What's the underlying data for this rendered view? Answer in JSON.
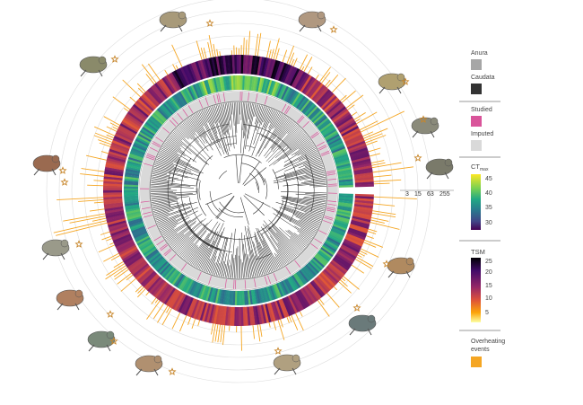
{
  "scale_labels": [
    "3",
    "15",
    "63",
    "255"
  ],
  "legend": {
    "order_title": "",
    "order_items": [
      {
        "label": "Anura",
        "color": "#a6a6a6"
      },
      {
        "label": "Caudata",
        "color": "#333333"
      }
    ],
    "data_items": [
      {
        "label": "Studied",
        "color": "#d9549a"
      },
      {
        "label": "Imputed",
        "color": "#d9d9d9"
      }
    ],
    "ct_title": "CT",
    "ct_subscript": "max",
    "ct_ticks": [
      "45",
      "40",
      "35",
      "30"
    ],
    "ct_colors": [
      "#fde725",
      "#7ad151",
      "#22a884",
      "#2a788e",
      "#414487",
      "#440154"
    ],
    "tsm_title": "TSM",
    "tsm_ticks": [
      "25",
      "20",
      "15",
      "10",
      "5"
    ],
    "tsm_colors": [
      "#000004",
      "#420a68",
      "#932667",
      "#dd513a",
      "#fca50a",
      "#fcffa4"
    ],
    "overheating_title_line1": "Overheating",
    "overheating_title_line2": "events",
    "overheating_color": "#f5a623"
  },
  "colors": {
    "tsm_ring_main": "#f07a2e",
    "ct_ring_main": "#22a884",
    "overheating_bars": "#f5a623",
    "studied_ticks": "#d9549a",
    "imputed_ring": "#d9d9d9",
    "tree_anura": "#1a1a1a",
    "star": "#c8862a",
    "grid": "#dddddd"
  },
  "icons": [
    "toad-icon",
    "newt-icon",
    "salamander-icon",
    "salamander-icon",
    "newt-icon",
    "frog-icon",
    "tree-frog-icon",
    "toad-icon",
    "frog-icon",
    "frog-icon",
    "toad-icon",
    "frog-icon",
    "toad-icon",
    "frog-icon",
    "toad-icon"
  ]
}
